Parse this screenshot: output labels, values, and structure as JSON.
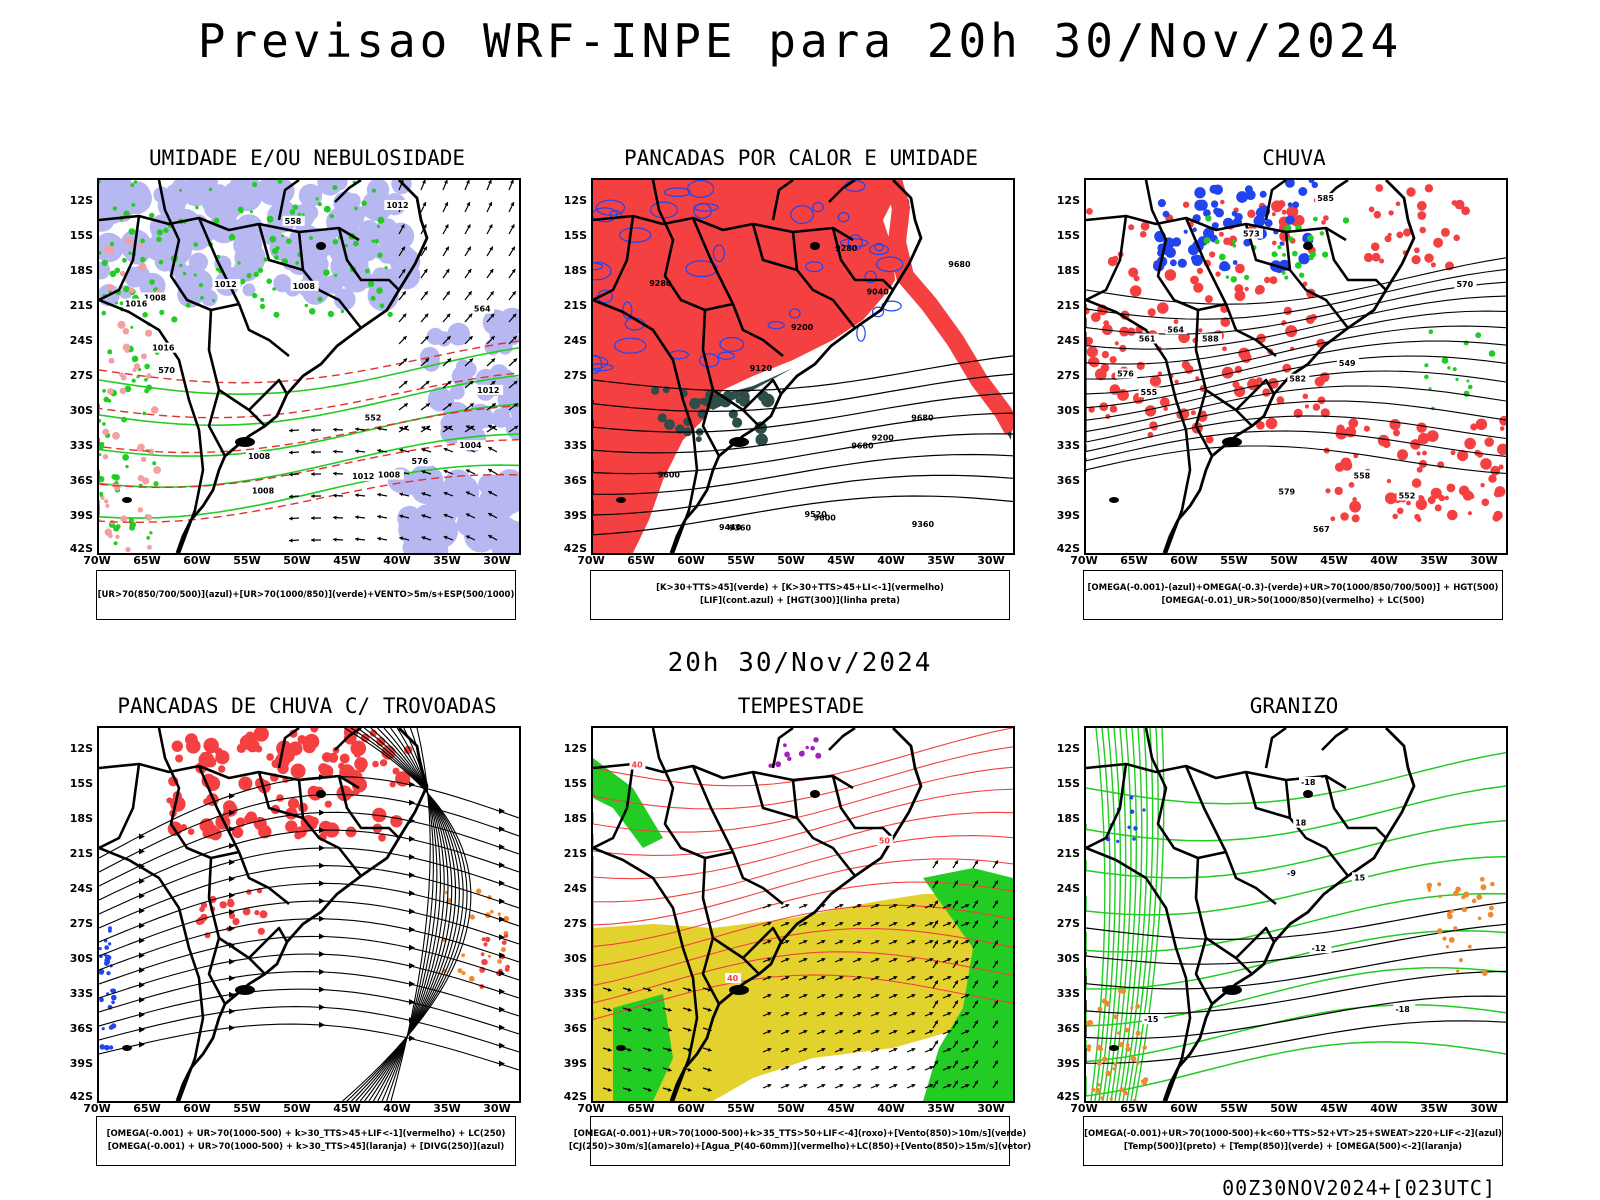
{
  "title": "Previsao WRF-INPE  para 20h 30/Nov/2024",
  "mid_title": "20h 30/Nov/2024",
  "footer": "00Z30NOV2024+[023UTC]",
  "lat_ticks": [
    "12S",
    "15S",
    "18S",
    "21S",
    "24S",
    "27S",
    "30S",
    "33S",
    "36S",
    "39S",
    "42S"
  ],
  "lon_ticks": [
    "70W",
    "65W",
    "60W",
    "55W",
    "50W",
    "45W",
    "40W",
    "35W",
    "30W"
  ],
  "colors": {
    "red": "#f44040",
    "green": "#22cc22",
    "blue": "#2244ee",
    "lavender": "#b7b7f2",
    "yellow": "#e3d12e",
    "darkteal": "#2e4d48",
    "orange": "#f08a30",
    "purple": "#a020c0"
  },
  "panels": [
    {
      "title": "UMIDADE E/OU NEBULOSIDADE",
      "legend": [
        "[UR>70(850/700/500)](azul)+[UR>70(1000/850)](verde)+VENTO>5m/s+ESP(500/1000)"
      ],
      "labels": [
        "1012",
        "1012",
        "1012",
        "1008",
        "1008",
        "1004",
        "1008",
        "1008",
        "1016",
        "1016",
        "1012",
        "1008",
        "576",
        "570",
        "564",
        "558",
        "552"
      ]
    },
    {
      "title": "PANCADAS POR CALOR E UMIDADE",
      "legend": [
        "[K>30+TTS>45](verde)  +  [K>30+TTS>45+LI<-1](vermelho)",
        "[LIF](cont.azul)  +  [HGT(300)](linha preta)"
      ],
      "labels": [
        "9680",
        "9680",
        "9680",
        "9600",
        "9520",
        "9440",
        "9360",
        "9280",
        "9200",
        "9120",
        "9040",
        "9600",
        "9360",
        "9280",
        "9200"
      ]
    },
    {
      "title": "CHUVA",
      "legend": [
        "[OMEGA(-0.001)-(azul)+OMEGA(-0.3)-(verde)+UR>70(1000/850/700/500)]  +  HGT(500)",
        "[OMEGA(-0.01)_UR>50(1000/850)(vermelho)  +  LC(500)"
      ],
      "labels": [
        "588",
        "585",
        "582",
        "579",
        "576",
        "573",
        "570",
        "567",
        "564",
        "561",
        "558",
        "555",
        "552",
        "549"
      ]
    },
    {
      "title": "PANCADAS DE CHUVA C/ TROVOADAS",
      "legend": [
        "[OMEGA(-0.001)  +  UR>70(1000-500)  +  k>30_TTS>45+LIF<-1](vermelho)  +  LC(250)",
        "[OMEGA(-0.001)  +  UR>70(1000-500)  +  k>30_TTS>45](laranja)  +  [DIVG(250)](azul)"
      ],
      "labels": []
    },
    {
      "title": "TEMPESTADE",
      "legend": [
        "[OMEGA(-0.001)+UR>70(1000-500)+k>35_TTS>50+LIF<-4](roxo)+[Vento(850)>10m/s](verde)",
        "[CJ(250)>30m/s](amarelo)+[Agua_P(40-60mm)](vermelho)+LC(850)+[Vento(850)>15m/s](vetor)"
      ],
      "labels": [
        "50",
        "40",
        "40"
      ]
    },
    {
      "title": "GRANIZO",
      "legend": [
        "[OMEGA(-0.001)+UR>70(1000-500)+k<60+TTS>52+VT>25+SWEAT>220+LIF<-2](azul)",
        "[Temp(500)](preto)  +  [Temp(850)](verde)  +  [OMEGA(500)<-2](laranja)"
      ],
      "labels": [
        "-12",
        "-15",
        "-18",
        "-9",
        "-18",
        "15",
        "18"
      ]
    }
  ]
}
